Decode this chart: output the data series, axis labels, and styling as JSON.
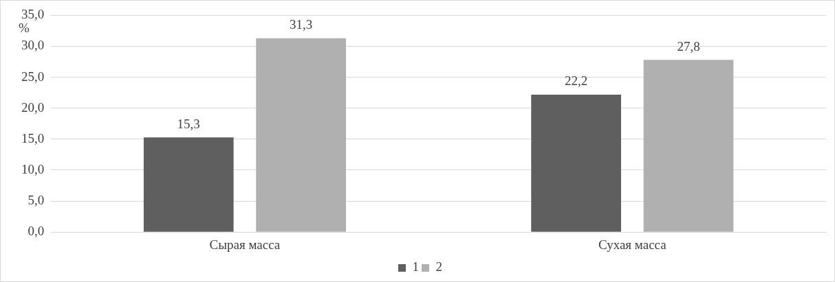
{
  "chart_data": {
    "type": "bar",
    "ylabel": "%",
    "categories": [
      "Сырая масса",
      "Сухая масса"
    ],
    "series": [
      {
        "name": "1",
        "color": "#5f5f5f",
        "values": [
          15.3,
          22.2
        ],
        "value_labels": [
          "15,3",
          "22,2"
        ]
      },
      {
        "name": "2",
        "color": "#b0b0b0",
        "values": [
          31.3,
          27.8
        ],
        "value_labels": [
          "31,3",
          "27,8"
        ]
      }
    ],
    "ylim": [
      0,
      35
    ],
    "yticks": [
      {
        "value": 0,
        "label": "0,0"
      },
      {
        "value": 5,
        "label": "5,0"
      },
      {
        "value": 10,
        "label": "10,0"
      },
      {
        "value": 15,
        "label": "15,0"
      },
      {
        "value": 20,
        "label": "20,0"
      },
      {
        "value": 25,
        "label": "25,0"
      },
      {
        "value": 30,
        "label": "30,0"
      },
      {
        "value": 35,
        "label": "35,0"
      }
    ],
    "grid": "y",
    "legend": "bottom"
  }
}
